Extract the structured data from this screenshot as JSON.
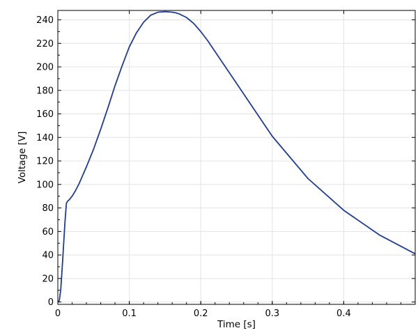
{
  "chart_data": {
    "type": "line",
    "title": "",
    "xlabel": "Time [s]",
    "ylabel": "Voltage [V]",
    "xlim": [
      0,
      0.5
    ],
    "ylim": [
      -2,
      248
    ],
    "xticks": [
      0,
      0.1,
      0.2,
      0.3,
      0.4
    ],
    "xtick_labels": [
      "0",
      "0.1",
      "0.2",
      "0.3",
      "0.4"
    ],
    "yticks": [
      0,
      20,
      40,
      60,
      80,
      100,
      120,
      140,
      160,
      180,
      200,
      220,
      240
    ],
    "ytick_labels": [
      "0",
      "20",
      "40",
      "60",
      "80",
      "100",
      "120",
      "140",
      "160",
      "180",
      "200",
      "220",
      "240"
    ],
    "grid": true,
    "line_color": "#1f3b9a",
    "series": [
      {
        "x": [
          0,
          0.002,
          0.004,
          0.006,
          0.008,
          0.01,
          0.012,
          0.014,
          0.016,
          0.02,
          0.025,
          0.03,
          0.04,
          0.05,
          0.06,
          0.07,
          0.08,
          0.09,
          0.1,
          0.11,
          0.12,
          0.13,
          0.14,
          0.15,
          0.16,
          0.165,
          0.17,
          0.18,
          0.19,
          0.2,
          0.21,
          0.22,
          0.25,
          0.3,
          0.35,
          0.4,
          0.45,
          0.5
        ],
        "y": [
          0,
          1,
          10,
          28,
          48,
          68,
          84,
          86,
          87,
          90,
          95,
          101,
          115,
          130,
          147,
          165,
          184,
          201,
          217,
          229,
          238,
          244,
          246.5,
          247,
          246.5,
          246,
          245,
          242,
          237,
          230,
          222,
          213,
          186,
          141,
          105,
          78,
          57,
          41
        ]
      }
    ]
  }
}
